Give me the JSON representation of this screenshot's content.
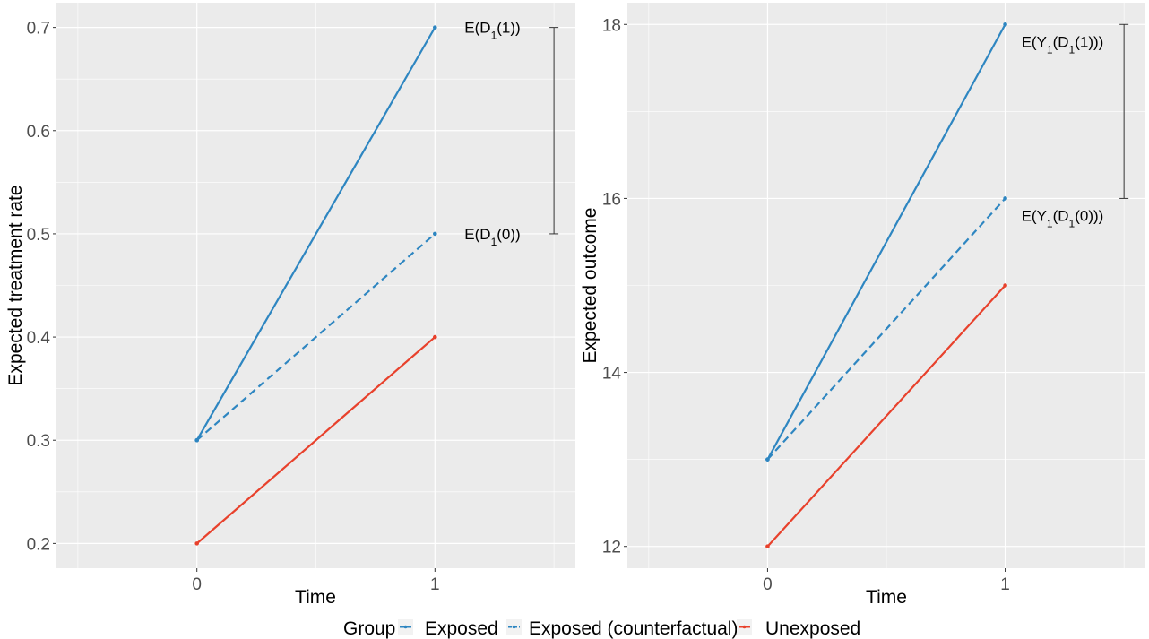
{
  "chart_data": [
    {
      "type": "line",
      "xlabel": "Time",
      "ylabel": "Expected treatment rate",
      "x": [
        0,
        1
      ],
      "xticks": [
        "0",
        "1"
      ],
      "xlim": [
        -0.59,
        1.59
      ],
      "ylim": [
        0.176,
        0.724
      ],
      "yticks": [
        "0.2",
        "0.3",
        "0.4",
        "0.5",
        "0.6",
        "0.7"
      ],
      "ytick_values": [
        0.2,
        0.3,
        0.4,
        0.5,
        0.6,
        0.7
      ],
      "grid": true,
      "series": [
        {
          "name": "Exposed",
          "values": [
            0.3,
            0.7
          ],
          "color": "#2e86c1",
          "dash": "solid"
        },
        {
          "name": "Exposed (counterfactual)",
          "values": [
            0.3,
            0.5
          ],
          "color": "#2e86c1",
          "dash": "dashed"
        },
        {
          "name": "Unexposed",
          "values": [
            0.2,
            0.4
          ],
          "color": "#e8412c",
          "dash": "solid"
        }
      ],
      "annotations": [
        {
          "y": 0.7,
          "pre": "E(D",
          "sub": "1",
          "post": "(1))"
        },
        {
          "y": 0.5,
          "pre": "E(D",
          "sub": "1",
          "post": "(0))"
        }
      ],
      "errorbar": {
        "x": 1.5,
        "ymin": 0.5,
        "ymax": 0.7
      }
    },
    {
      "type": "line",
      "xlabel": "Time",
      "ylabel": "Expected outcome",
      "x": [
        0,
        1
      ],
      "xticks": [
        "0",
        "1"
      ],
      "xlim": [
        -0.59,
        1.59
      ],
      "ylim": [
        11.75,
        18.25
      ],
      "yticks": [
        "12",
        "14",
        "16",
        "18"
      ],
      "ytick_values": [
        12,
        14,
        16,
        18
      ],
      "grid": true,
      "series": [
        {
          "name": "Exposed",
          "values": [
            13,
            18
          ],
          "color": "#2e86c1",
          "dash": "solid"
        },
        {
          "name": "Exposed (counterfactual)",
          "values": [
            13,
            16
          ],
          "color": "#2e86c1",
          "dash": "dashed"
        },
        {
          "name": "Unexposed",
          "values": [
            12,
            15
          ],
          "color": "#e8412c",
          "dash": "solid"
        }
      ],
      "annotations": [
        {
          "y": 18,
          "pre": "E(Y",
          "sub": "1",
          "mid": "(D",
          "sub2": "1",
          "post": "(1)))"
        },
        {
          "y": 16,
          "pre": "E(Y",
          "sub": "1",
          "mid": "(D",
          "sub2": "1",
          "post": "(0)))"
        }
      ],
      "errorbar": {
        "x": 1.5,
        "ymin": 16,
        "ymax": 18
      }
    }
  ],
  "legend": {
    "title": "Group",
    "position": "bottom",
    "items": [
      {
        "label": "Exposed",
        "color": "#2e86c1",
        "dash": "solid"
      },
      {
        "label": "Exposed (counterfactual)",
        "color": "#2e86c1",
        "dash": "dashed"
      },
      {
        "label": "Unexposed",
        "color": "#e8412c",
        "dash": "solid"
      }
    ]
  },
  "colors": {
    "panel": "#ebebeb",
    "grid": "#ffffff",
    "errorbar": "#333333"
  }
}
